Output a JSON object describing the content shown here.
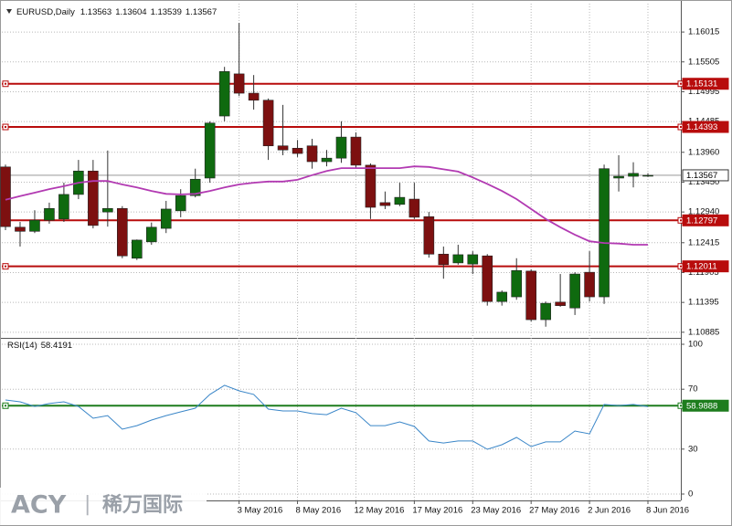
{
  "chart_data": [
    {
      "type": "candlestick",
      "title": "EURUSD,Daily",
      "x": [
        null,
        null,
        null,
        null,
        null,
        null,
        null,
        null,
        null,
        null,
        null,
        null,
        null,
        null,
        null,
        null,
        "3 May 2016",
        null,
        null,
        null,
        "8 May 2016",
        null,
        null,
        null,
        "12 May 2016",
        null,
        null,
        null,
        "17 May 2016",
        null,
        null,
        null,
        "23 May 2016",
        null,
        null,
        null,
        "27 May 2016",
        null,
        null,
        null,
        "2 Jun 2016",
        null,
        null,
        null,
        "8 Jun 2016"
      ],
      "open": [
        1.1371,
        1.1268,
        1.1261,
        1.128,
        1.1282,
        1.1324,
        1.1364,
        1.1294,
        1.13,
        1.1215,
        1.1243,
        1.1266,
        1.1296,
        1.1322,
        1.1352,
        1.1458,
        1.153,
        1.1497,
        1.1485,
        1.1407,
        1.1403,
        1.1407,
        1.138,
        1.1386,
        1.1422,
        1.1374,
        1.131,
        1.1307,
        1.1316,
        1.1286,
        1.1222,
        1.1207,
        1.1205,
        1.1219,
        1.1141,
        1.1149,
        1.1193,
        1.111,
        1.114,
        1.113,
        1.1191,
        1.1149,
        1.1352,
        1.1355,
        1.13563
      ],
      "high": [
        1.1375,
        1.1277,
        1.1297,
        1.131,
        1.1344,
        1.1383,
        1.1383,
        1.1399,
        1.1304,
        1.1247,
        1.1276,
        1.1313,
        1.1333,
        1.1368,
        1.1449,
        1.1542,
        1.1617,
        1.1528,
        1.1488,
        1.1477,
        1.1417,
        1.1419,
        1.14,
        1.1449,
        1.143,
        1.1377,
        1.1329,
        1.1344,
        1.1344,
        1.1294,
        1.1235,
        1.1238,
        1.1227,
        1.1222,
        1.116,
        1.1215,
        1.1196,
        1.1141,
        1.1188,
        1.1191,
        1.1227,
        1.1375,
        1.1391,
        1.1379,
        1.13604
      ],
      "low": [
        1.1263,
        1.1235,
        1.1258,
        1.1274,
        1.1277,
        1.1316,
        1.1266,
        1.1269,
        1.1215,
        1.1212,
        1.1238,
        1.1258,
        1.1285,
        1.1319,
        1.1344,
        1.1449,
        1.1492,
        1.1469,
        1.1383,
        1.1391,
        1.1388,
        1.1368,
        1.1372,
        1.1378,
        1.1368,
        1.1282,
        1.1299,
        1.1304,
        1.1282,
        1.1216,
        1.118,
        1.1204,
        1.1188,
        1.1134,
        1.1134,
        1.1144,
        1.1107,
        1.1098,
        1.1132,
        1.1118,
        1.1141,
        1.1137,
        1.1329,
        1.1336,
        1.13539
      ],
      "close": [
        1.1269,
        1.1261,
        1.128,
        1.13,
        1.1324,
        1.1364,
        1.1271,
        1.13,
        1.1219,
        1.1246,
        1.1268,
        1.1299,
        1.1322,
        1.135,
        1.1446,
        1.1534,
        1.1497,
        1.1485,
        1.1407,
        1.14,
        1.1394,
        1.138,
        1.1386,
        1.1422,
        1.1374,
        1.1302,
        1.1305,
        1.1319,
        1.1285,
        1.1222,
        1.1204,
        1.1221,
        1.1221,
        1.1141,
        1.1157,
        1.1194,
        1.111,
        1.1138,
        1.1134,
        1.1188,
        1.1149,
        1.1368,
        1.1355,
        1.136,
        1.13567
      ],
      "up_color": "#0f6a0f",
      "down_color": "#7d1010",
      "moving_average": {
        "color": "#b23ab2",
        "values": [
          1.1315,
          1.1321,
          1.1327,
          1.1333,
          1.1338,
          1.1344,
          1.1347,
          1.1347,
          1.1341,
          1.1336,
          1.133,
          1.1325,
          1.1324,
          1.1325,
          1.133,
          1.1336,
          1.1341,
          1.1344,
          1.1346,
          1.1346,
          1.1349,
          1.1357,
          1.1364,
          1.1369,
          1.1369,
          1.1369,
          1.1369,
          1.1369,
          1.1372,
          1.1371,
          1.1367,
          1.1363,
          1.1353,
          1.1342,
          1.133,
          1.1316,
          1.1299,
          1.1282,
          1.1268,
          1.1255,
          1.1244,
          1.1241,
          1.124,
          1.1238,
          1.1238
        ]
      },
      "levels": [
        1.15131,
        1.14393,
        1.12797,
        1.12011
      ],
      "level_color": "#b80c0c",
      "ylim": [
        1.1082,
        1.165
      ],
      "yticks": [
        1.16015,
        1.15505,
        1.14995,
        1.14485,
        {
          "value": 1.1396,
          "label": "1.13960"
        },
        {
          "value": 1.1345,
          "label": "1.13450"
        },
        {
          "value": 1.1294,
          "label": "1.12940"
        },
        1.12415,
        1.11905,
        1.11395,
        1.10885
      ],
      "grid": true
    },
    {
      "type": "line",
      "title": "RSI(14)",
      "color": "#3a86c8",
      "values": [
        62.8,
        61.6,
        58.5,
        60.4,
        61.6,
        58.5,
        50.6,
        52.4,
        43.3,
        45.7,
        49.4,
        52.4,
        54.9,
        57.3,
        66.5,
        72.6,
        68.9,
        66.5,
        56.7,
        55.5,
        55.5,
        53.7,
        53.0,
        57.3,
        54.3,
        45.7,
        45.7,
        48.2,
        45.1,
        35.4,
        34.1,
        35.4,
        35.4,
        29.9,
        32.9,
        37.8,
        31.7,
        34.8,
        34.8,
        42.1,
        40.2,
        59.8,
        59.1,
        59.8,
        58.4191
      ],
      "levels": [
        58.9888
      ],
      "level_color": "#1d7d1d",
      "ylim": [
        -4.27,
        103.05
      ],
      "yticks": [
        100,
        70,
        30,
        0
      ],
      "grid": true
    }
  ],
  "watermark": {
    "brand": "ACY",
    "separator": "|",
    "name": "稀万国际"
  }
}
